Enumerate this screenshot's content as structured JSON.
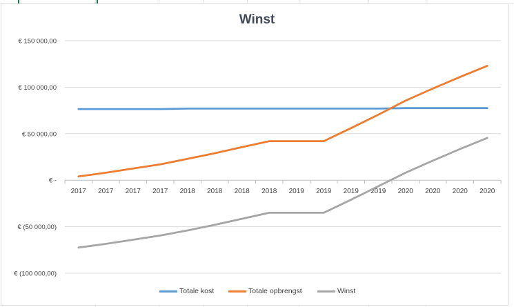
{
  "chart_data": {
    "type": "line",
    "title": "Winst",
    "xlabel": "",
    "ylabel": "",
    "categories": [
      "2017",
      "2017",
      "2017",
      "2017",
      "2018",
      "2018",
      "2018",
      "2018",
      "2019",
      "2019",
      "2019",
      "2019",
      "2020",
      "2020",
      "2020",
      "2020"
    ],
    "ylim": [
      -100000,
      150000
    ],
    "yticks": [
      150000,
      100000,
      50000,
      0,
      -50000,
      -100000
    ],
    "ytick_labels": [
      "€ 150 000,00",
      "€ 100 000,00",
      "€ 50 000,00",
      "€ -",
      "€ (50 000,00)",
      "€ (100 000,00)"
    ],
    "grid": true,
    "legend_position": "bottom",
    "series": [
      {
        "name": "Totale kost",
        "color": "#5b9bd5",
        "values": [
          76500,
          76500,
          76500,
          76500,
          77000,
          77000,
          77000,
          77000,
          77000,
          77000,
          77000,
          77000,
          77500,
          77500,
          77500,
          77500
        ]
      },
      {
        "name": "Totale opbrengst",
        "color": "#ed7d31",
        "values": [
          4000,
          8000,
          12500,
          17000,
          23000,
          29000,
          35500,
          42000,
          42000,
          42000,
          56000,
          70500,
          85500,
          98500,
          111000,
          123000
        ]
      },
      {
        "name": "Winst",
        "color": "#a5a5a5",
        "values": [
          -72500,
          -68500,
          -64000,
          -59500,
          -54000,
          -48000,
          -41500,
          -35000,
          -35000,
          -35000,
          -21000,
          -6500,
          8000,
          21000,
          33500,
          45500
        ]
      }
    ]
  }
}
